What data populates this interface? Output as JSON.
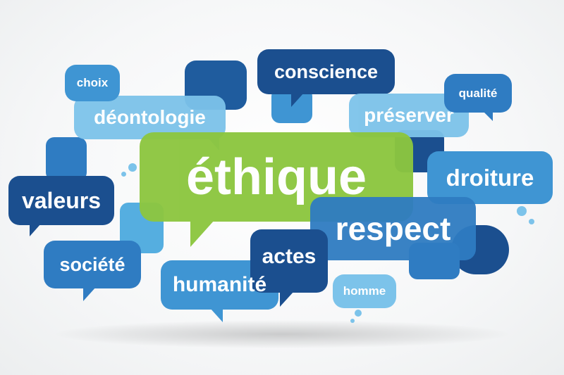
{
  "words": {
    "ethique": "éthique",
    "respect": "respect",
    "conscience": "conscience",
    "deontologie": "déontologie",
    "preserver": "préserver",
    "droiture": "droiture",
    "valeurs": "valeurs",
    "societe": "société",
    "humanite": "humanité",
    "actes": "actes",
    "homme": "homme",
    "choix": "choix",
    "qualite": "qualité"
  },
  "colors": {
    "green": "#8cc63f",
    "navy": "#1b4f8f",
    "blue": "#2f7cc2",
    "mid_blue": "#3f95d3",
    "light_blue": "#7cc3ea",
    "sky": "#55aee0"
  }
}
